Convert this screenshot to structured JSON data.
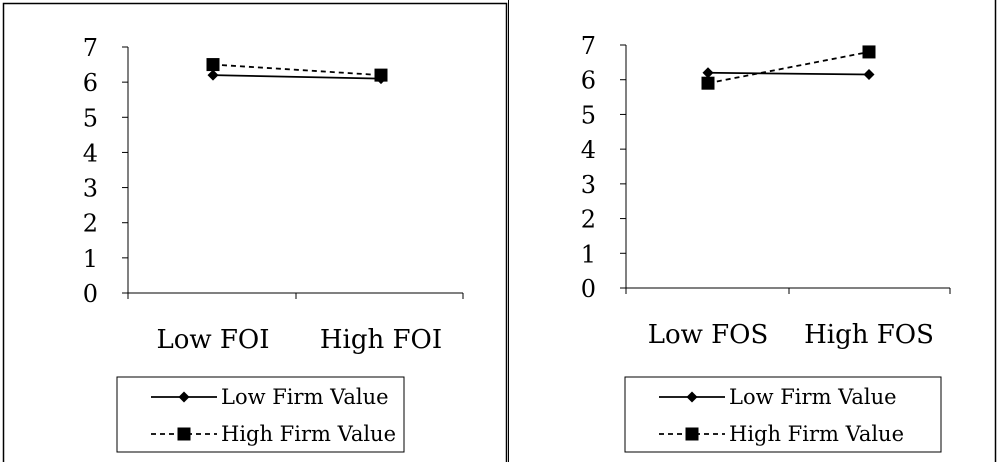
{
  "chart_data": [
    {
      "type": "line",
      "title": "",
      "xlabel": "",
      "ylabel": "",
      "categories": [
        "Low FOI",
        "High FOI"
      ],
      "ylim": [
        0,
        7
      ],
      "yticks": [
        "0",
        "1",
        "2",
        "3",
        "4",
        "5",
        "6",
        "7"
      ],
      "grid": false,
      "legend_position": "bottom",
      "series": [
        {
          "name": "Low Firm Value",
          "values": [
            6.2,
            6.1
          ],
          "line_style": "solid",
          "marker": "diamond",
          "color": "#000000"
        },
        {
          "name": "High Firm Value",
          "values": [
            6.5,
            6.2
          ],
          "line_style": "dashed",
          "marker": "square",
          "color": "#000000"
        }
      ]
    },
    {
      "type": "line",
      "title": "",
      "xlabel": "",
      "ylabel": "",
      "categories": [
        "Low FOS",
        "High FOS"
      ],
      "ylim": [
        0,
        7
      ],
      "yticks": [
        "0",
        "1",
        "2",
        "3",
        "4",
        "5",
        "6",
        "7"
      ],
      "grid": false,
      "legend_position": "bottom",
      "series": [
        {
          "name": "Low Firm Value",
          "values": [
            6.2,
            6.15
          ],
          "line_style": "solid",
          "marker": "diamond",
          "color": "#000000"
        },
        {
          "name": "High Firm Value",
          "values": [
            5.9,
            6.8
          ],
          "line_style": "dashed",
          "marker": "square",
          "color": "#000000"
        }
      ]
    }
  ]
}
